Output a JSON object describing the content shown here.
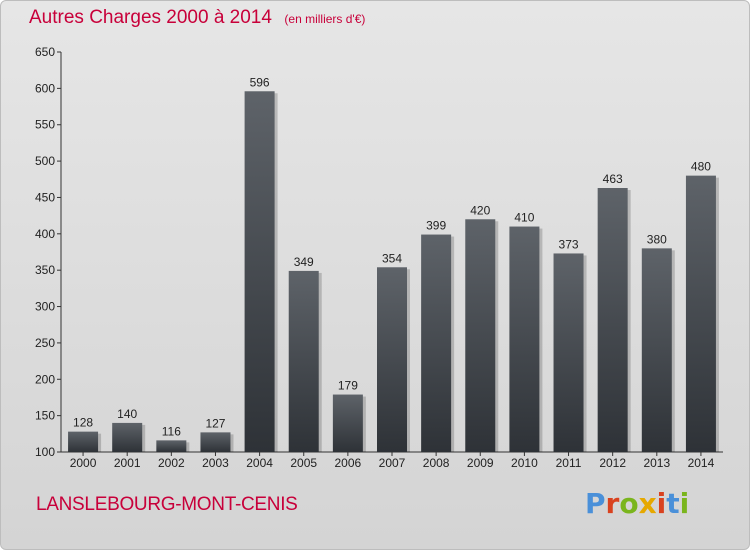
{
  "chart_data": {
    "type": "bar",
    "title": "Autres Charges 2000 à 2014",
    "subtitle": "(en milliers d'€)",
    "xlabel": "",
    "ylabel": "",
    "categories": [
      "2000",
      "2001",
      "2002",
      "2003",
      "2004",
      "2005",
      "2006",
      "2007",
      "2008",
      "2009",
      "2010",
      "2011",
      "2012",
      "2013",
      "2014"
    ],
    "values": [
      128,
      140,
      116,
      127,
      596,
      349,
      179,
      354,
      399,
      420,
      410,
      373,
      463,
      380,
      480
    ],
    "ylim": [
      100,
      650
    ],
    "yticks": [
      "100",
      "150",
      "200",
      "250",
      "300",
      "350",
      "400",
      "450",
      "500",
      "550",
      "600",
      "650"
    ],
    "grid": false,
    "legend": "none",
    "bar_color_top": "#5e6369",
    "bar_color_bottom": "#2e3237"
  },
  "footer": {
    "place": "LANSLEBOURG-MONT-CENIS",
    "logo": "Proxiti"
  },
  "colors": {
    "title": "#c8003a",
    "logo_letters": [
      "#4a90d9",
      "#d9421f",
      "#7ab51d",
      "#e6a800",
      "#d9421f",
      "#4a90d9",
      "#7ab51d"
    ]
  }
}
